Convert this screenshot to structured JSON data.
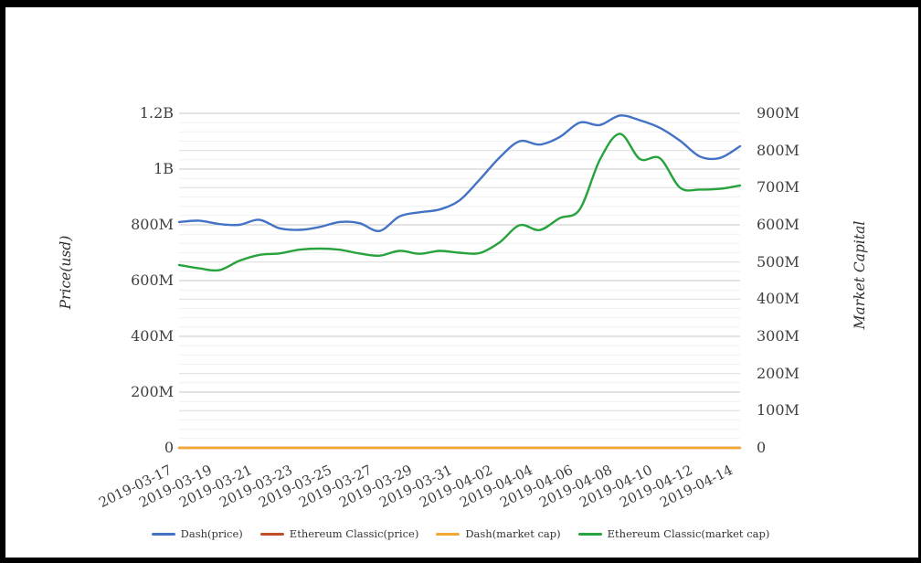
{
  "chart_data": {
    "type": "line",
    "title": "",
    "values_unit": "millions_usd",
    "grid": true,
    "legend_position": "bottom",
    "x": [
      "2019-03-17",
      "2019-03-18",
      "2019-03-19",
      "2019-03-20",
      "2019-03-21",
      "2019-03-22",
      "2019-03-23",
      "2019-03-24",
      "2019-03-25",
      "2019-03-26",
      "2019-03-27",
      "2019-03-28",
      "2019-03-29",
      "2019-03-30",
      "2019-03-31",
      "2019-04-01",
      "2019-04-02",
      "2019-04-03",
      "2019-04-04",
      "2019-04-05",
      "2019-04-06",
      "2019-04-07",
      "2019-04-08",
      "2019-04-09",
      "2019-04-10",
      "2019-04-11",
      "2019-04-12",
      "2019-04-13",
      "2019-04-14"
    ],
    "x_tick_labels": [
      "2019-03-17",
      "2019-03-19",
      "2019-03-21",
      "2019-03-23",
      "2019-03-25",
      "2019-03-27",
      "2019-03-29",
      "2019-03-31",
      "2019-04-02",
      "2019-04-04",
      "2019-04-06",
      "2019-04-08",
      "2019-04-10",
      "2019-04-12",
      "2019-04-14"
    ],
    "left_axis": {
      "title": "Price(usd)",
      "min": 0,
      "max": 1200,
      "ticks": [
        {
          "label": "1.2B",
          "value": 1200
        },
        {
          "label": "1B",
          "value": 1000
        },
        {
          "label": "800M",
          "value": 800
        },
        {
          "label": "600M",
          "value": 600
        },
        {
          "label": "400M",
          "value": 400
        },
        {
          "label": "200M",
          "value": 200
        },
        {
          "label": "0",
          "value": 0
        }
      ]
    },
    "right_axis": {
      "title": "Market Capital",
      "min": 0,
      "max": 900,
      "ticks": [
        {
          "label": "900M",
          "value": 900
        },
        {
          "label": "800M",
          "value": 800
        },
        {
          "label": "700M",
          "value": 700
        },
        {
          "label": "600M",
          "value": 600
        },
        {
          "label": "500M",
          "value": 500
        },
        {
          "label": "400M",
          "value": 400
        },
        {
          "label": "300M",
          "value": 300
        },
        {
          "label": "200M",
          "value": 200
        },
        {
          "label": "100M",
          "value": 100
        },
        {
          "label": "0",
          "value": 0
        }
      ]
    },
    "series": [
      {
        "name": "Dash(price)",
        "axis": "left",
        "color": "#4472c4",
        "values": [
          810,
          815,
          803,
          800,
          818,
          788,
          782,
          792,
          810,
          806,
          778,
          830,
          845,
          855,
          888,
          962,
          1042,
          1100,
          1088,
          1115,
          1167,
          1158,
          1192,
          1175,
          1148,
          1102,
          1045,
          1040,
          1082
        ]
      },
      {
        "name": "Ethereum Classic(price)",
        "axis": "left",
        "color": "#c04f28",
        "values": [
          0,
          0,
          0,
          0,
          0,
          0,
          0,
          0,
          0,
          0,
          0,
          0,
          0,
          0,
          0,
          0,
          0,
          0,
          0,
          0,
          0,
          0,
          0,
          0,
          0,
          0,
          0,
          0,
          0
        ]
      },
      {
        "name": "Dash(market cap)",
        "axis": "right",
        "color": "#f0a831",
        "values": [
          0,
          0,
          0,
          0,
          0,
          0,
          0,
          0,
          0,
          0,
          0,
          0,
          0,
          0,
          0,
          0,
          0,
          0,
          0,
          0,
          0,
          0,
          0,
          0,
          0,
          0,
          0,
          0,
          0
        ]
      },
      {
        "name": "Ethereum Classic(market cap)",
        "axis": "right",
        "color": "#27a23c",
        "values": [
          492,
          483,
          478,
          503,
          519,
          523,
          533,
          536,
          533,
          523,
          517,
          530,
          522,
          530,
          525,
          524,
          553,
          599,
          586,
          618,
          642,
          775,
          845,
          777,
          779,
          700,
          695,
          697,
          706
        ]
      }
    ],
    "gridline_colors": {
      "left_major": "#c9c9c9",
      "right_major": "#dcdcdc",
      "minor": "#f1f1f1"
    }
  }
}
